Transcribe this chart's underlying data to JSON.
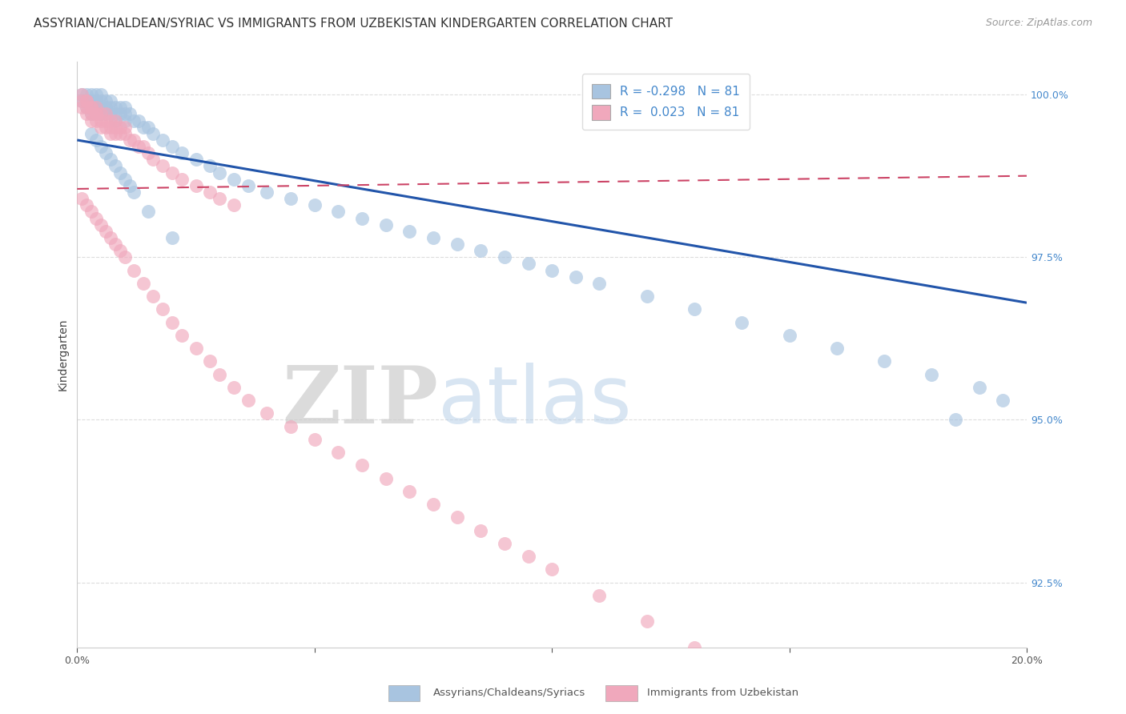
{
  "title": "ASSYRIAN/CHALDEAN/SYRIAC VS IMMIGRANTS FROM UZBEKISTAN KINDERGARTEN CORRELATION CHART",
  "source": "Source: ZipAtlas.com",
  "ylabel": "Kindergarten",
  "xmin": 0.0,
  "xmax": 0.2,
  "ymin": 0.915,
  "ymax": 1.005,
  "yticks": [
    0.925,
    0.95,
    0.975,
    1.0
  ],
  "ytick_labels": [
    "92.5%",
    "95.0%",
    "97.5%",
    "100.0%"
  ],
  "xticks": [
    0.0,
    0.05,
    0.1,
    0.15,
    0.2
  ],
  "xtick_labels": [
    "0.0%",
    "",
    "",
    "",
    "20.0%"
  ],
  "legend_blue_r": "R = -0.298",
  "legend_blue_n": "N = 81",
  "legend_pink_r": "R =  0.023",
  "legend_pink_n": "N = 81",
  "blue_color": "#a8c4e0",
  "pink_color": "#f0a8bc",
  "blue_line_color": "#2255aa",
  "pink_line_color": "#cc4466",
  "watermark_zip": "ZIP",
  "watermark_atlas": "atlas",
  "blue_scatter_x": [
    0.001,
    0.001,
    0.002,
    0.002,
    0.002,
    0.003,
    0.003,
    0.003,
    0.003,
    0.004,
    0.004,
    0.004,
    0.005,
    0.005,
    0.005,
    0.005,
    0.006,
    0.006,
    0.006,
    0.007,
    0.007,
    0.007,
    0.008,
    0.008,
    0.008,
    0.009,
    0.009,
    0.01,
    0.01,
    0.01,
    0.011,
    0.012,
    0.013,
    0.014,
    0.015,
    0.016,
    0.018,
    0.02,
    0.022,
    0.025,
    0.028,
    0.03,
    0.033,
    0.036,
    0.04,
    0.045,
    0.05,
    0.055,
    0.06,
    0.065,
    0.07,
    0.075,
    0.08,
    0.085,
    0.09,
    0.095,
    0.1,
    0.105,
    0.11,
    0.12,
    0.13,
    0.14,
    0.15,
    0.16,
    0.17,
    0.18,
    0.19,
    0.195,
    0.003,
    0.004,
    0.005,
    0.006,
    0.007,
    0.008,
    0.009,
    0.01,
    0.011,
    0.012,
    0.015,
    0.02,
    0.185
  ],
  "blue_scatter_y": [
    1.0,
    0.999,
    1.0,
    0.999,
    0.998,
    1.0,
    0.999,
    0.998,
    0.997,
    1.0,
    0.999,
    0.998,
    1.0,
    0.999,
    0.998,
    0.997,
    0.999,
    0.998,
    0.997,
    0.999,
    0.998,
    0.997,
    0.998,
    0.997,
    0.996,
    0.998,
    0.997,
    0.998,
    0.997,
    0.996,
    0.997,
    0.996,
    0.996,
    0.995,
    0.995,
    0.994,
    0.993,
    0.992,
    0.991,
    0.99,
    0.989,
    0.988,
    0.987,
    0.986,
    0.985,
    0.984,
    0.983,
    0.982,
    0.981,
    0.98,
    0.979,
    0.978,
    0.977,
    0.976,
    0.975,
    0.974,
    0.973,
    0.972,
    0.971,
    0.969,
    0.967,
    0.965,
    0.963,
    0.961,
    0.959,
    0.957,
    0.955,
    0.953,
    0.994,
    0.993,
    0.992,
    0.991,
    0.99,
    0.989,
    0.988,
    0.987,
    0.986,
    0.985,
    0.982,
    0.978,
    0.95
  ],
  "pink_scatter_x": [
    0.001,
    0.001,
    0.002,
    0.002,
    0.002,
    0.003,
    0.003,
    0.003,
    0.004,
    0.004,
    0.004,
    0.005,
    0.005,
    0.005,
    0.006,
    0.006,
    0.006,
    0.007,
    0.007,
    0.007,
    0.008,
    0.008,
    0.008,
    0.009,
    0.009,
    0.01,
    0.01,
    0.011,
    0.012,
    0.013,
    0.014,
    0.015,
    0.016,
    0.018,
    0.02,
    0.022,
    0.025,
    0.028,
    0.03,
    0.033,
    0.001,
    0.002,
    0.003,
    0.004,
    0.005,
    0.006,
    0.007,
    0.008,
    0.009,
    0.01,
    0.012,
    0.014,
    0.016,
    0.018,
    0.02,
    0.022,
    0.025,
    0.028,
    0.03,
    0.033,
    0.036,
    0.04,
    0.045,
    0.05,
    0.055,
    0.06,
    0.065,
    0.07,
    0.075,
    0.08,
    0.085,
    0.09,
    0.095,
    0.1,
    0.11,
    0.12,
    0.13,
    0.001,
    0.002,
    0.003,
    0.004
  ],
  "pink_scatter_y": [
    0.999,
    0.998,
    0.999,
    0.998,
    0.997,
    0.998,
    0.997,
    0.996,
    0.998,
    0.997,
    0.996,
    0.997,
    0.996,
    0.995,
    0.997,
    0.996,
    0.995,
    0.996,
    0.995,
    0.994,
    0.996,
    0.995,
    0.994,
    0.995,
    0.994,
    0.995,
    0.994,
    0.993,
    0.993,
    0.992,
    0.992,
    0.991,
    0.99,
    0.989,
    0.988,
    0.987,
    0.986,
    0.985,
    0.984,
    0.983,
    0.984,
    0.983,
    0.982,
    0.981,
    0.98,
    0.979,
    0.978,
    0.977,
    0.976,
    0.975,
    0.973,
    0.971,
    0.969,
    0.967,
    0.965,
    0.963,
    0.961,
    0.959,
    0.957,
    0.955,
    0.953,
    0.951,
    0.949,
    0.947,
    0.945,
    0.943,
    0.941,
    0.939,
    0.937,
    0.935,
    0.933,
    0.931,
    0.929,
    0.927,
    0.923,
    0.919,
    0.915,
    1.0,
    0.999,
    0.998,
    0.997
  ],
  "blue_line_x0": 0.0,
  "blue_line_y0": 0.993,
  "blue_line_x1": 0.2,
  "blue_line_y1": 0.968,
  "pink_line_x0": 0.0,
  "pink_line_y0": 0.9855,
  "pink_line_x1": 0.2,
  "pink_line_y1": 0.9875,
  "grid_color": "#dddddd",
  "background_color": "#ffffff",
  "title_fontsize": 11,
  "axis_label_fontsize": 10,
  "tick_fontsize": 9,
  "legend_fontsize": 11,
  "source_fontsize": 9
}
